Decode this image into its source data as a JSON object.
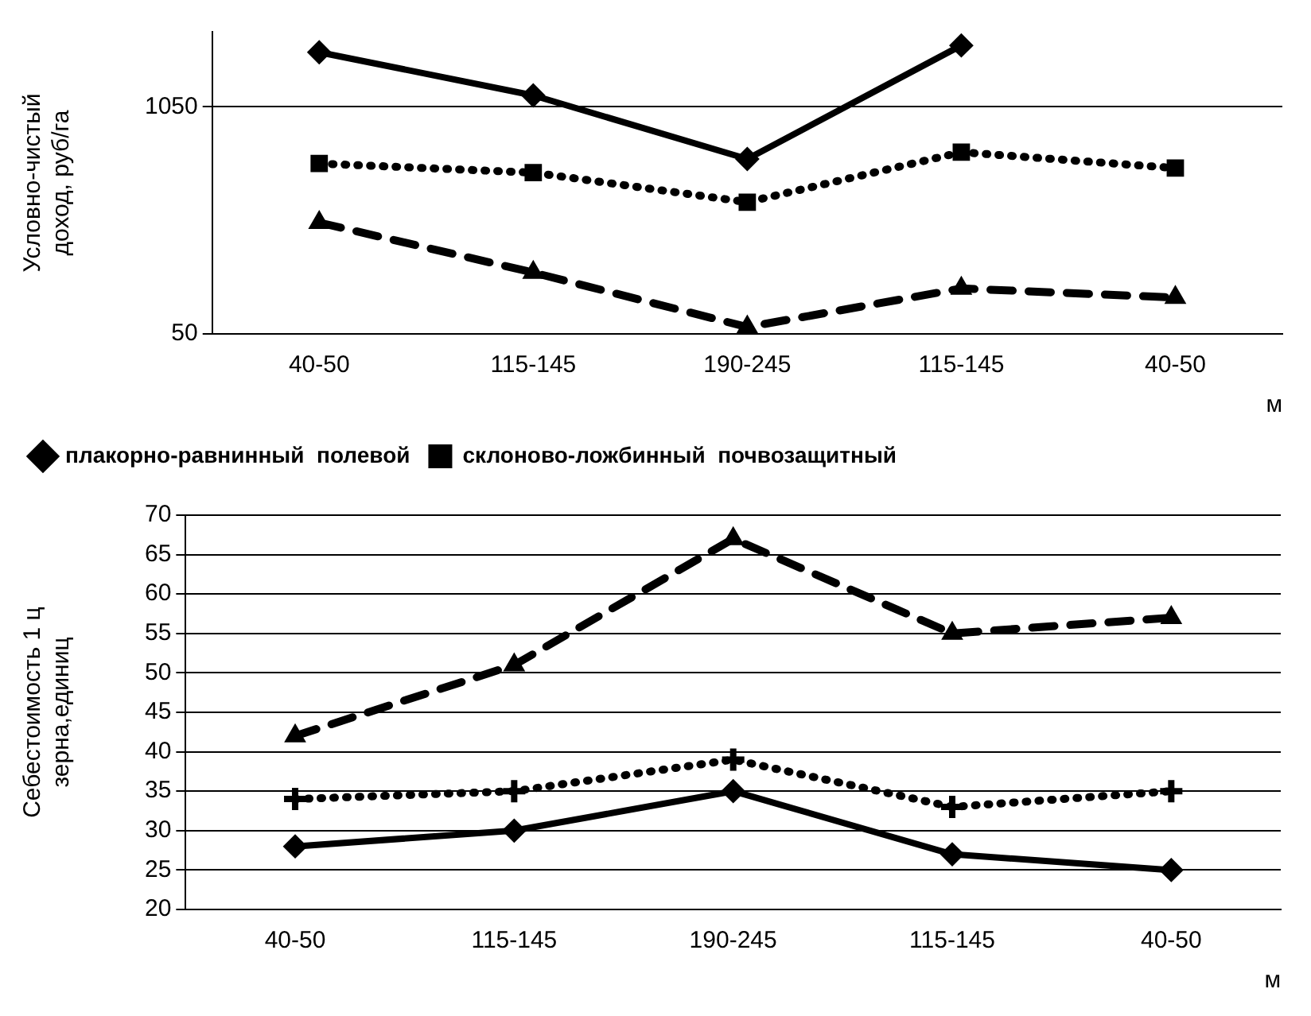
{
  "chart_data": [
    {
      "type": "line",
      "ylabel": "Условно-чистый доход, руб/га",
      "xlabel": "м",
      "categories": [
        "40-50",
        "115-145",
        "190-245",
        "115-145",
        "40-50"
      ],
      "ylim": [
        50,
        1380
      ],
      "yticks": [
        50,
        1050
      ],
      "grid": "y",
      "legend": "bottom",
      "series": [
        {
          "name": "плакорно-равнинный  полевой",
          "color": "#000000",
          "marker": "diamond",
          "line_style": "solid",
          "values": [
            1290,
            1100,
            820,
            1320,
            null
          ]
        },
        {
          "name": "склоново-ложбинный  почвозащитный",
          "color": "#000000",
          "marker": "square",
          "line_style": "dotted",
          "values": [
            800,
            760,
            630,
            850,
            780
          ]
        },
        {
          "color": "#000000",
          "marker": "triangle",
          "line_style": "dashed",
          "values": [
            540,
            320,
            80,
            250,
            210
          ]
        }
      ]
    },
    {
      "type": "line",
      "ylabel": "Себестоимость 1 ц зерна,единиц",
      "xlabel": "м",
      "categories": [
        "40-50",
        "115-145",
        "190-245",
        "115-145",
        "40-50"
      ],
      "ylim": [
        20,
        70
      ],
      "yticks": [
        20,
        25,
        30,
        35,
        40,
        45,
        50,
        55,
        60,
        65,
        70
      ],
      "grid": "y",
      "series": [
        {
          "color": "#000000",
          "marker": "triangle",
          "line_style": "dashed",
          "values": [
            42,
            51,
            67,
            55,
            57
          ]
        },
        {
          "color": "#000000",
          "marker": "cross",
          "line_style": "dotted",
          "values": [
            34,
            35,
            39,
            33,
            35
          ]
        },
        {
          "color": "#000000",
          "marker": "diamond",
          "line_style": "solid",
          "values": [
            28,
            30,
            35,
            27,
            25
          ]
        }
      ]
    }
  ]
}
